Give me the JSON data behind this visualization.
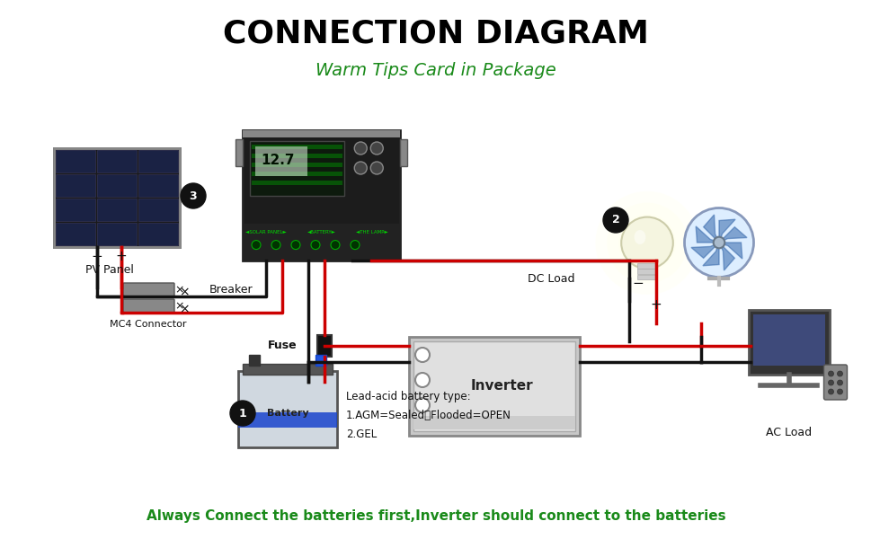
{
  "title": "CONNECTION DIAGRAM",
  "subtitle": "Warm Tips Card in Package",
  "footer": "Always Connect the batteries first,Inverter should connect to the batteries",
  "title_color": "#000000",
  "subtitle_color": "#1a8a1a",
  "footer_color": "#1a8a1a",
  "bg_color": "#ffffff",
  "labels": {
    "pv_panel": "PV Panel",
    "breaker": "Breaker",
    "mc4": "MC4 Connector",
    "dc_load": "DC Load",
    "inverter": "Inverter",
    "ac_load": "AC Load",
    "fuse": "Fuse",
    "battery": "Battery",
    "battery_type": "Lead-acid battery type:\n1.AGM=Sealed、Flooded=OPEN\n2.GEL"
  }
}
